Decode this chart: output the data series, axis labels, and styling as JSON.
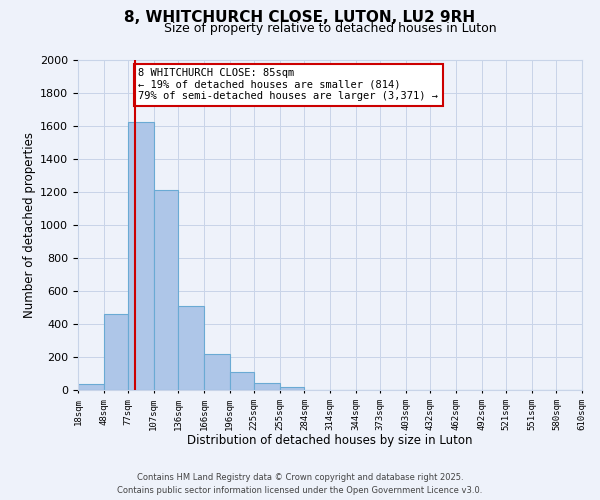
{
  "title": "8, WHITCHURCH CLOSE, LUTON, LU2 9RH",
  "subtitle": "Size of property relative to detached houses in Luton",
  "xlabel": "Distribution of detached houses by size in Luton",
  "ylabel": "Number of detached properties",
  "bar_edges": [
    18,
    48,
    77,
    107,
    136,
    166,
    196,
    225,
    255,
    284,
    314,
    344,
    373,
    403,
    432,
    462,
    492,
    521,
    551,
    580,
    610
  ],
  "bar_heights": [
    35,
    460,
    1625,
    1210,
    510,
    220,
    110,
    45,
    20,
    0,
    0,
    0,
    0,
    0,
    0,
    0,
    0,
    0,
    0,
    0
  ],
  "bar_color": "#aec6e8",
  "bar_edge_color": "#6aaad4",
  "ylim": [
    0,
    2000
  ],
  "yticks": [
    0,
    200,
    400,
    600,
    800,
    1000,
    1200,
    1400,
    1600,
    1800,
    2000
  ],
  "vline_x": 85,
  "vline_color": "#cc0000",
  "annotation_title": "8 WHITCHURCH CLOSE: 85sqm",
  "annotation_line1": "← 19% of detached houses are smaller (814)",
  "annotation_line2": "79% of semi-detached houses are larger (3,371) →",
  "annotation_box_color": "#cc0000",
  "background_color": "#eef2fa",
  "grid_color": "#c8d4e8",
  "footer_line1": "Contains HM Land Registry data © Crown copyright and database right 2025.",
  "footer_line2": "Contains public sector information licensed under the Open Government Licence v3.0.",
  "tick_labels": [
    "18sqm",
    "48sqm",
    "77sqm",
    "107sqm",
    "136sqm",
    "166sqm",
    "196sqm",
    "225sqm",
    "255sqm",
    "284sqm",
    "314sqm",
    "344sqm",
    "373sqm",
    "403sqm",
    "432sqm",
    "462sqm",
    "492sqm",
    "521sqm",
    "551sqm",
    "580sqm",
    "610sqm"
  ]
}
